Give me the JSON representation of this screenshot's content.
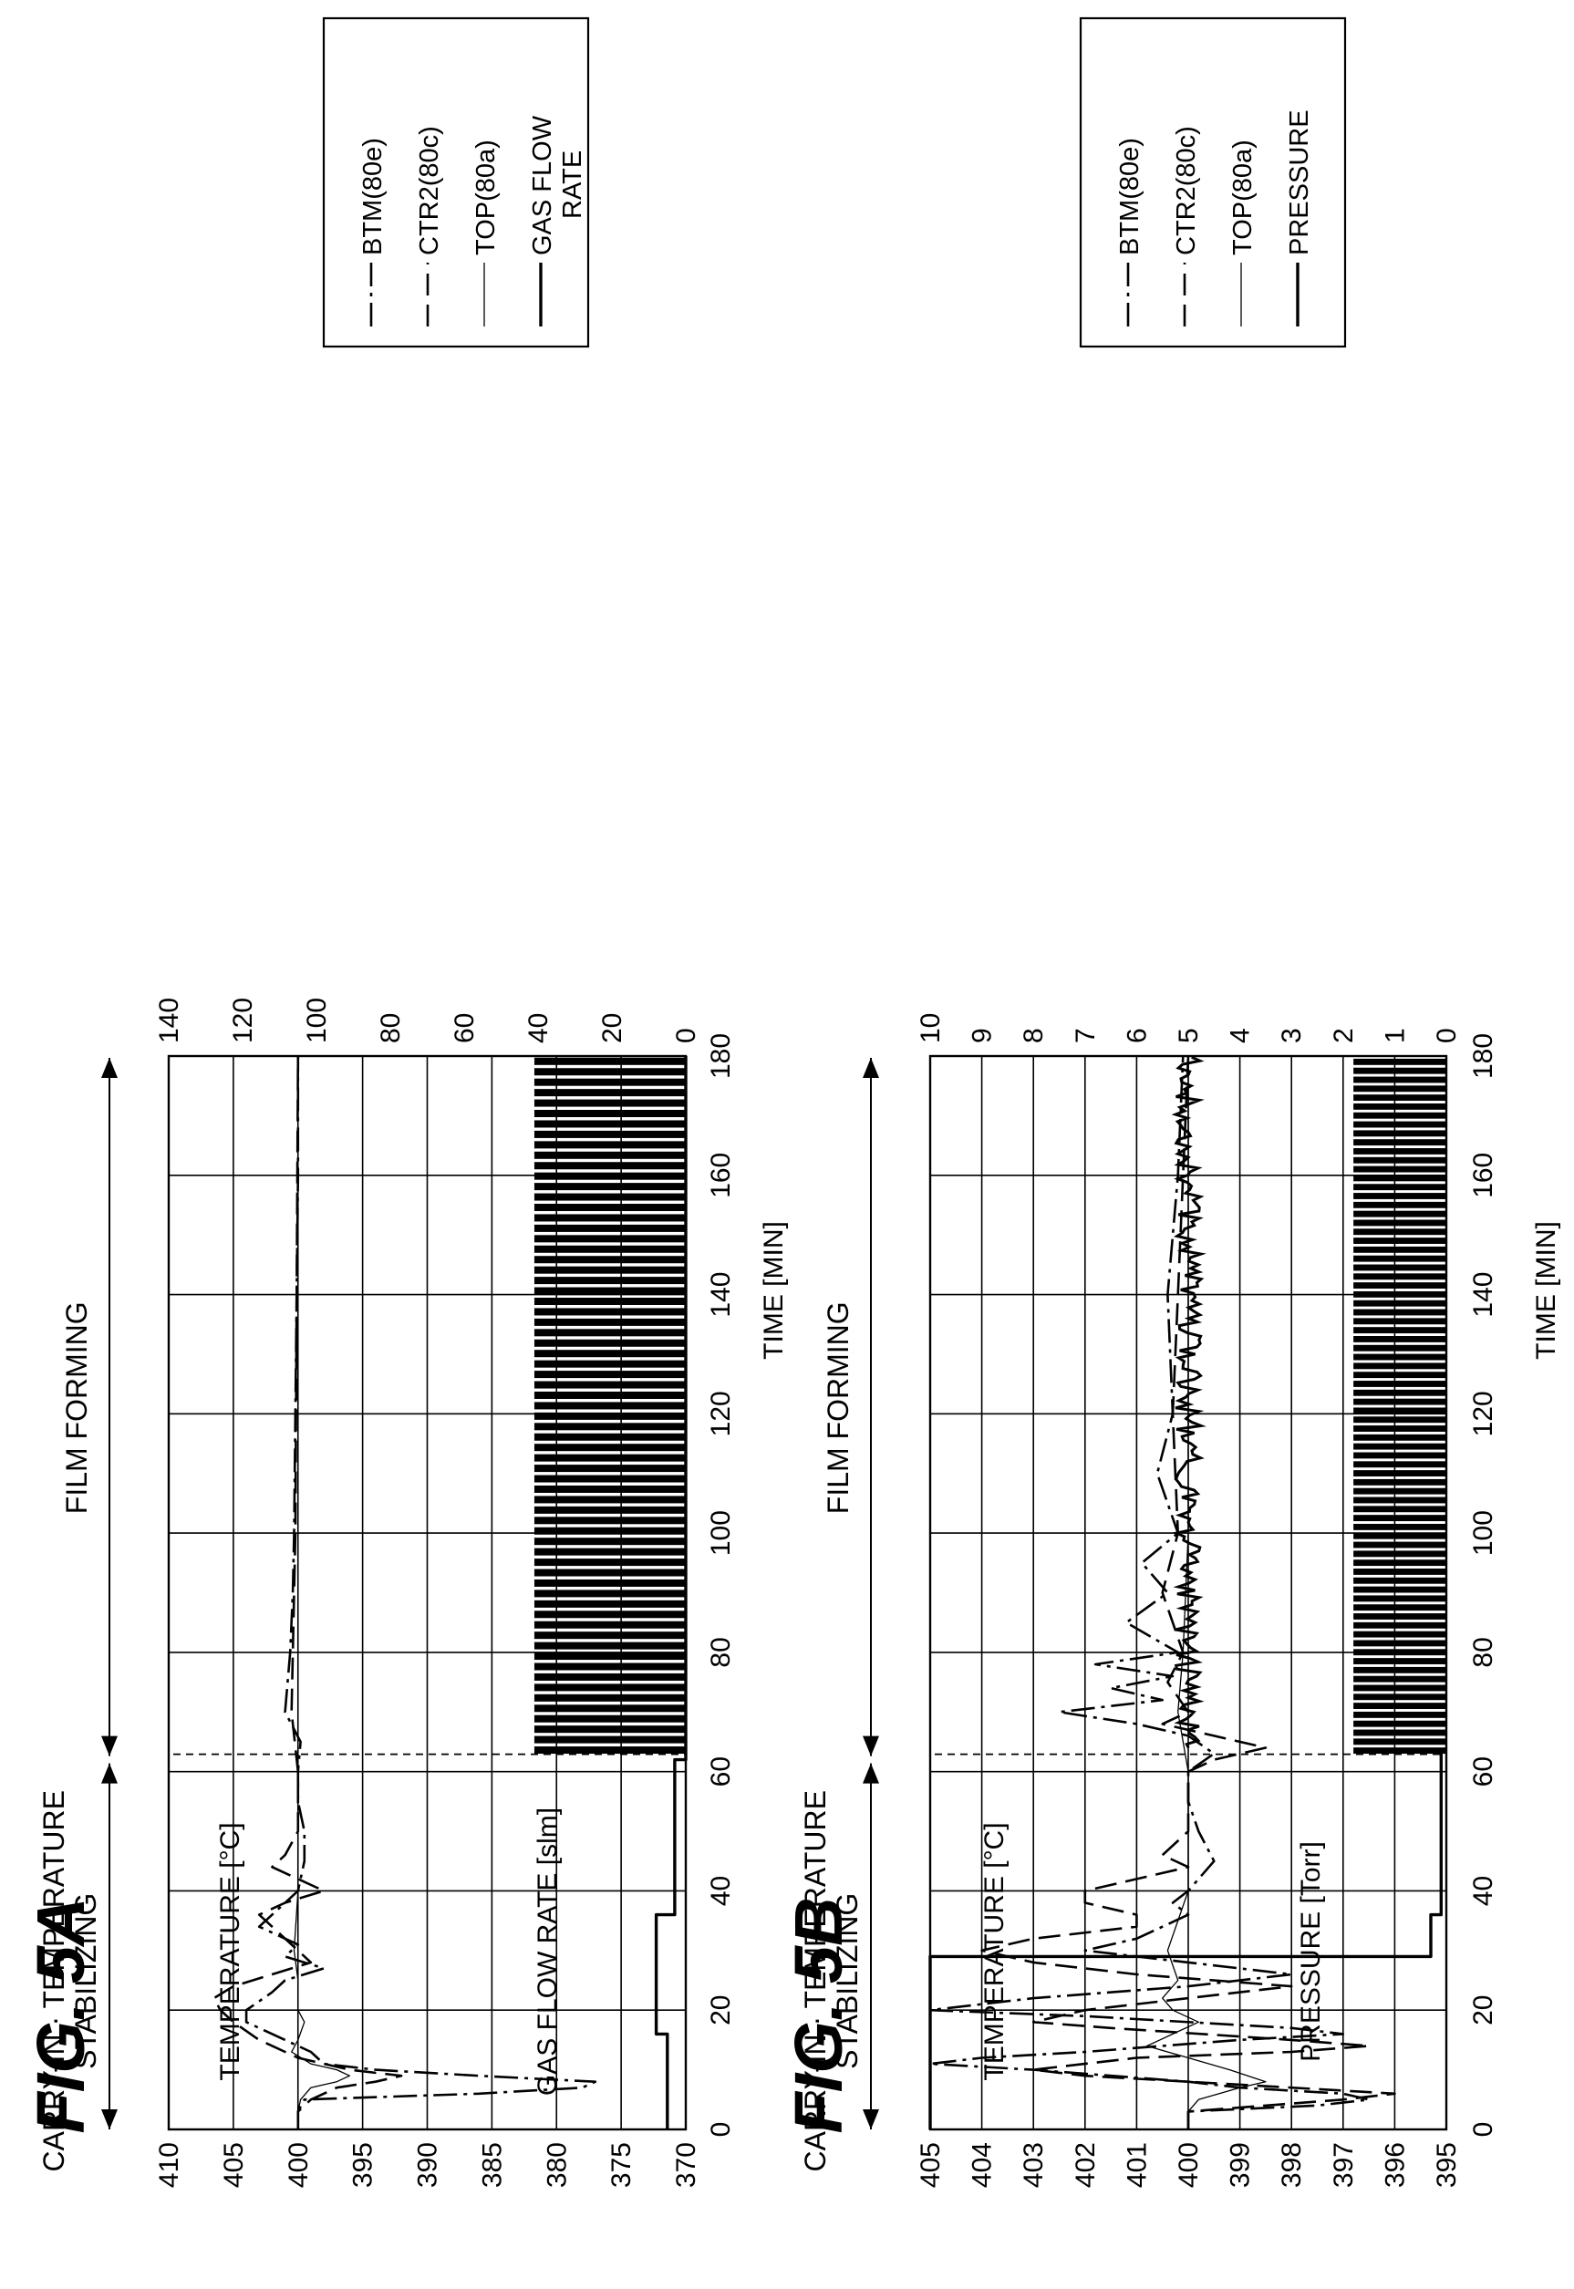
{
  "chart_data": [
    {
      "type": "line",
      "fig_label": "FIG. 5A",
      "xlabel": "TIME [MIN]",
      "ylabel": "TEMPERATURE [°C]",
      "y2label": "GAS FLOW RATE [slm]",
      "xlim": [
        0,
        180
      ],
      "ylim": [
        370,
        410
      ],
      "y2lim": [
        0,
        140
      ],
      "x_ticks": [
        "0",
        "20",
        "40",
        "60",
        "80",
        "100",
        "120",
        "140",
        "160",
        "180"
      ],
      "y_ticks": [
        "370",
        "375",
        "380",
        "385",
        "390",
        "395",
        "400",
        "405",
        "410"
      ],
      "y2_ticks": [
        "0",
        "20",
        "40",
        "60",
        "80",
        "100",
        "120",
        "140"
      ],
      "grid": true,
      "phases": [
        {
          "label": "CARRY-IN · TEMPERATURE STABILIZING",
          "from": 0,
          "to": 62
        },
        {
          "label": "FILM FORMING",
          "from": 62,
          "to": 180
        }
      ],
      "legend_placement": "right",
      "series": [
        {
          "name": "BTM(80e)",
          "style": "dash-dot",
          "axis": "left",
          "points": [
            [
              0,
              400
            ],
            [
              3,
              400
            ],
            [
              5,
              399.5
            ],
            [
              6,
              386
            ],
            [
              7,
              378
            ],
            [
              8,
              377
            ],
            [
              9,
              386
            ],
            [
              10,
              394
            ],
            [
              11,
              398
            ],
            [
              13,
              399
            ],
            [
              15,
              401
            ],
            [
              18,
              404
            ],
            [
              20,
              404
            ],
            [
              23,
              402
            ],
            [
              25,
              401
            ],
            [
              27,
              398
            ],
            [
              29,
              401
            ],
            [
              31,
              400
            ],
            [
              34,
              403
            ],
            [
              36,
              402
            ],
            [
              38,
              401
            ],
            [
              40,
              400
            ],
            [
              45,
              399.5
            ],
            [
              50,
              399.5
            ],
            [
              55,
              400
            ],
            [
              60,
              400
            ],
            [
              65,
              399.8
            ],
            [
              70,
              401
            ],
            [
              80,
              400.6
            ],
            [
              90,
              400.4
            ],
            [
              100,
              400.3
            ],
            [
              120,
              400.2
            ],
            [
              140,
              400.1
            ],
            [
              160,
              400
            ],
            [
              180,
              400
            ]
          ]
        },
        {
          "name": "CTR2(80c)",
          "style": "dashed",
          "axis": "left",
          "points": [
            [
              0,
              400
            ],
            [
              3,
              400
            ],
            [
              5,
              399
            ],
            [
              7,
              397
            ],
            [
              8,
              394
            ],
            [
              9,
              392
            ],
            [
              10,
              396
            ],
            [
              12,
              400
            ],
            [
              15,
              403
            ],
            [
              18,
              405
            ],
            [
              20,
              406
            ],
            [
              22,
              406.5
            ],
            [
              24,
              405
            ],
            [
              26,
              402
            ],
            [
              28,
              399
            ],
            [
              30,
              400
            ],
            [
              32,
              401
            ],
            [
              34,
              402
            ],
            [
              36,
              403
            ],
            [
              38,
              401
            ],
            [
              40,
              398
            ],
            [
              42,
              400
            ],
            [
              44,
              402
            ],
            [
              46,
              401
            ],
            [
              50,
              400
            ],
            [
              55,
              400
            ],
            [
              60,
              400
            ],
            [
              70,
              400.5
            ],
            [
              80,
              400.4
            ],
            [
              100,
              400.2
            ],
            [
              140,
              400.1
            ],
            [
              180,
              400
            ]
          ]
        },
        {
          "name": "TOP(80a)",
          "style": "thin",
          "axis": "left",
          "points": [
            [
              0,
              400
            ],
            [
              3,
              400
            ],
            [
              5,
              399.8
            ],
            [
              7,
              399
            ],
            [
              8,
              397
            ],
            [
              9,
              396
            ],
            [
              10,
              397
            ],
            [
              11,
              399
            ],
            [
              13,
              400.5
            ],
            [
              15,
              400
            ],
            [
              18,
              399.5
            ],
            [
              20,
              400
            ],
            [
              25,
              400
            ],
            [
              30,
              400.3
            ],
            [
              40,
              400
            ],
            [
              50,
              400
            ],
            [
              60,
              400
            ],
            [
              80,
              400
            ],
            [
              100,
              400
            ],
            [
              120,
              400
            ],
            [
              140,
              400
            ],
            [
              160,
              400
            ],
            [
              180,
              400
            ]
          ]
        },
        {
          "name": "GAS FLOW RATE",
          "style": "thick",
          "axis": "right",
          "points": [
            [
              0,
              5
            ],
            [
              16,
              5
            ],
            [
              16,
              8
            ],
            [
              36,
              8
            ],
            [
              36,
              3
            ],
            [
              38,
              3
            ],
            [
              40,
              3
            ],
            [
              58,
              3
            ],
            [
              62,
              3
            ],
            [
              62,
              0
            ],
            [
              180,
              0
            ]
          ],
          "pulses": {
            "from": 63,
            "to": 180,
            "period": 1.75,
            "high": 41,
            "low": 0,
            "duty": 0.7
          }
        }
      ],
      "legend": [
        {
          "label": "BTM(80e)",
          "style": "dash-dot"
        },
        {
          "label": "CTR2(80c)",
          "style": "dashed"
        },
        {
          "label": "TOP(80a)",
          "style": "thin"
        },
        {
          "label": "GAS FLOW RATE",
          "style": "thick"
        }
      ]
    },
    {
      "type": "line",
      "fig_label": "FIG. 5B",
      "xlabel": "TIME [MIN]",
      "ylabel": "TEMPERATURE [°C]",
      "y2label": "PRESSURE [Torr]",
      "xlim": [
        0,
        180
      ],
      "ylim": [
        395,
        405
      ],
      "y2lim": [
        0,
        10
      ],
      "x_ticks": [
        "0",
        "20",
        "40",
        "60",
        "80",
        "100",
        "120",
        "140",
        "160",
        "180"
      ],
      "y_ticks": [
        "395",
        "396",
        "397",
        "398",
        "399",
        "400",
        "401",
        "402",
        "403",
        "404",
        "405"
      ],
      "y2_ticks": [
        "0",
        "1",
        "2",
        "3",
        "4",
        "5",
        "6",
        "7",
        "8",
        "9",
        "10"
      ],
      "grid": true,
      "phases": [
        {
          "label": "CARRY-IN · TEMPERATURE STABILIZING",
          "from": 0,
          "to": 62
        },
        {
          "label": "FILM FORMING",
          "from": 62,
          "to": 180
        }
      ],
      "legend_placement": "right",
      "series": [
        {
          "name": "BTM(80e)",
          "style": "dash-dot",
          "axis": "left",
          "points": [
            [
              0,
              400
            ],
            [
              3,
              400
            ],
            [
              4,
              397.5
            ],
            [
              5,
              396.5
            ],
            [
              6,
              397
            ],
            [
              7,
              399
            ],
            [
              8,
              400
            ],
            [
              10,
              403
            ],
            [
              11,
              405
            ],
            [
              12,
              404
            ],
            [
              13,
              402
            ],
            [
              15,
              399
            ],
            [
              16,
              397
            ],
            [
              17,
              398
            ],
            [
              19,
              402
            ],
            [
              20,
              405
            ],
            [
              22,
              403
            ],
            [
              24,
              400
            ],
            [
              26,
              398
            ],
            [
              28,
              400
            ],
            [
              30,
              402
            ],
            [
              32,
              401
            ],
            [
              34,
              400.5
            ],
            [
              36,
              400
            ],
            [
              38,
              400.3
            ],
            [
              40,
              400
            ],
            [
              45,
              399.5
            ],
            [
              50,
              399.8
            ],
            [
              55,
              400
            ],
            [
              60,
              400
            ],
            [
              63,
              399.5
            ],
            [
              66,
              400
            ],
            [
              68,
              401
            ],
            [
              70,
              402.5
            ],
            [
              72,
              400.5
            ],
            [
              74,
              401.5
            ],
            [
              76,
              400.3
            ],
            [
              78,
              401.8
            ],
            [
              80,
              400.2
            ],
            [
              85,
              401.2
            ],
            [
              90,
              400.4
            ],
            [
              95,
              400.9
            ],
            [
              100,
              400.2
            ],
            [
              110,
              400.6
            ],
            [
              120,
              400.3
            ],
            [
              140,
              400.4
            ],
            [
              160,
              400.2
            ],
            [
              180,
              400.1
            ]
          ]
        },
        {
          "name": "CTR2(80c)",
          "style": "dashed",
          "axis": "left",
          "points": [
            [
              0,
              400
            ],
            [
              3,
              400
            ],
            [
              5,
              397
            ],
            [
              6,
              396
            ],
            [
              7,
              398
            ],
            [
              9,
              402
            ],
            [
              10,
              403
            ],
            [
              12,
              401
            ],
            [
              13,
              398
            ],
            [
              14,
              396.5
            ],
            [
              15,
              398
            ],
            [
              17,
              401.5
            ],
            [
              18,
              403
            ],
            [
              20,
              402
            ],
            [
              22,
              400
            ],
            [
              24,
              398
            ],
            [
              26,
              401
            ],
            [
              28,
              403
            ],
            [
              30,
              404
            ],
            [
              32,
              403
            ],
            [
              34,
              401
            ],
            [
              36,
              401
            ],
            [
              38,
              402
            ],
            [
              40,
              402
            ],
            [
              42,
              401
            ],
            [
              44,
              400
            ],
            [
              46,
              400.5
            ],
            [
              50,
              400
            ],
            [
              55,
              400
            ],
            [
              60,
              400
            ],
            [
              62,
              399.5
            ],
            [
              64,
              398.5
            ],
            [
              66,
              399.5
            ],
            [
              68,
              400.5
            ],
            [
              70,
              400
            ],
            [
              75,
              400.4
            ],
            [
              80,
              400.1
            ],
            [
              90,
              400.5
            ],
            [
              100,
              400.2
            ],
            [
              120,
              400.3
            ],
            [
              140,
              400.2
            ],
            [
              160,
              400.1
            ],
            [
              180,
              400
            ]
          ]
        },
        {
          "name": "TOP(80a)",
          "style": "thin",
          "axis": "left",
          "points": [
            [
              0,
              400
            ],
            [
              3,
              400
            ],
            [
              5,
              399.8
            ],
            [
              7,
              399
            ],
            [
              8,
              398.5
            ],
            [
              10,
              399.2
            ],
            [
              12,
              400
            ],
            [
              14,
              400.8
            ],
            [
              16,
              400.3
            ],
            [
              18,
              399.8
            ],
            [
              20,
              400.3
            ],
            [
              22,
              400.5
            ],
            [
              25,
              400.2
            ],
            [
              30,
              400.4
            ],
            [
              35,
              400.2
            ],
            [
              40,
              400
            ],
            [
              50,
              400
            ],
            [
              60,
              400
            ],
            [
              70,
              400.2
            ],
            [
              80,
              400.1
            ],
            [
              100,
              400
            ],
            [
              140,
              400
            ],
            [
              180,
              400
            ]
          ]
        },
        {
          "name": "PRESSURE",
          "style": "thick",
          "axis": "right",
          "points": [
            [
              0,
              10
            ],
            [
              29,
              10
            ],
            [
              29,
              0.3
            ],
            [
              36,
              0.3
            ],
            [
              36,
              0.1
            ],
            [
              63,
              0.1
            ]
          ],
          "noise": {
            "from": 64,
            "to": 180,
            "mean": 5,
            "amplitude": 0.25
          },
          "pulses": {
            "from": 63,
            "to": 180,
            "period": 1.5,
            "high": 1.8,
            "low": 0,
            "duty": 0.7
          }
        }
      ],
      "legend": [
        {
          "label": "BTM(80e)",
          "style": "dash-dot"
        },
        {
          "label": "CTR2(80c)",
          "style": "dashed"
        },
        {
          "label": "TOP(80a)",
          "style": "thin"
        },
        {
          "label": "PRESSURE",
          "style": "thick"
        }
      ]
    }
  ]
}
